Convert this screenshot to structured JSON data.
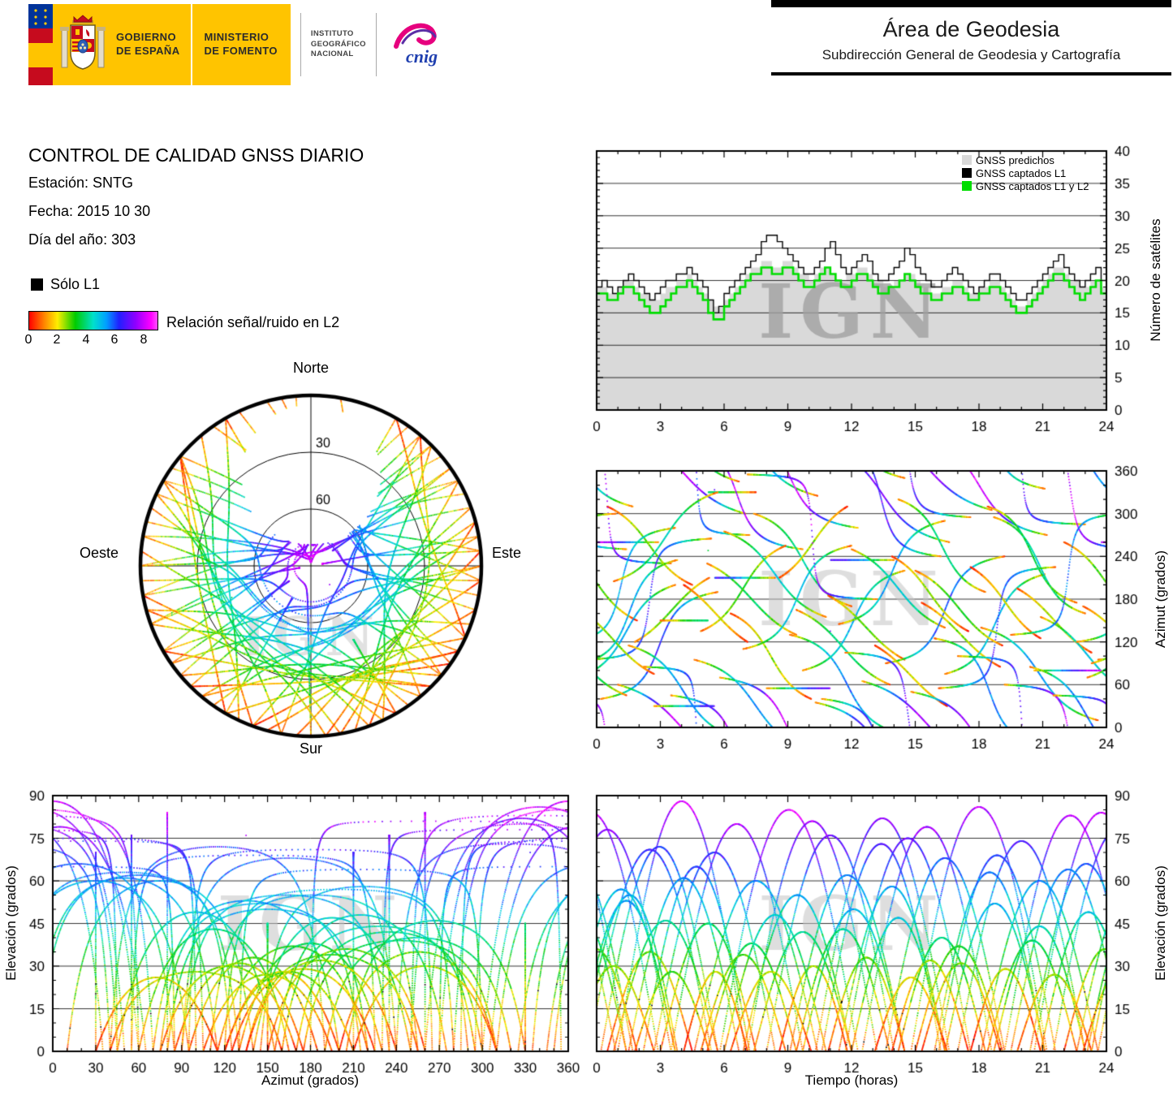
{
  "watermark": "IGN",
  "banner": {
    "gobierno": [
      "GOBIERNO",
      "DE ESPAÑA"
    ],
    "ministerio": [
      "MINISTERIO",
      "DE FOMENTO"
    ],
    "instituto": [
      "INSTITUTO",
      "GEOGRÁFICO",
      "NACIONAL"
    ],
    "cnig": "cnig"
  },
  "area": {
    "title": "Área de Geodesia",
    "subtitle": "Subdirección General de Geodesia y Cartografía"
  },
  "info": {
    "title": "CONTROL DE CALIDAD GNSS DIARIO",
    "station": "Estación: SNTG",
    "date": "Fecha: 2015 10 30",
    "doy": "Día del año: 303"
  },
  "legend": {
    "solo_l1": "Sólo L1",
    "snr_label": "Relación señal/ruido en L2",
    "snr_ticks": [
      0,
      2,
      4,
      6,
      8
    ]
  },
  "skyplot": {
    "north": "Norte",
    "south": "Sur",
    "east": "Este",
    "west": "Oeste"
  },
  "chart_data": [
    {
      "id": "satellite_count",
      "type": "line",
      "title": "",
      "xlabel": "",
      "ylabel": "Número de satélites",
      "xlim": [
        0,
        24
      ],
      "ylim": [
        0,
        40
      ],
      "xticks": [
        0,
        3,
        6,
        9,
        12,
        15,
        18,
        21,
        24
      ],
      "yticks": [
        0,
        5,
        10,
        15,
        20,
        25,
        30,
        35,
        40
      ],
      "grid": [
        5,
        10,
        15,
        20,
        25,
        30,
        35
      ],
      "sample_interval_hours": 0.25,
      "legend": [
        {
          "label": "GNSS predichos",
          "color": "#d9d9d9"
        },
        {
          "label": "GNSS captados L1",
          "color": "#000000"
        },
        {
          "label": "GNSS captados L1 y L2",
          "color": "#00dd00"
        }
      ],
      "series": [
        {
          "name": "GNSS predichos",
          "values": [
            19,
            19,
            18,
            18,
            19,
            20,
            20,
            19,
            18,
            18,
            17,
            17,
            18,
            19,
            19,
            20,
            20,
            21,
            20,
            19,
            18,
            17,
            16,
            16,
            17,
            18,
            19,
            20,
            21,
            22,
            22,
            23,
            23,
            22,
            22,
            23,
            23,
            22,
            21,
            21,
            20,
            21,
            22,
            22,
            21,
            20,
            20,
            21,
            21,
            22,
            22,
            21,
            20,
            20,
            19,
            19,
            20,
            20,
            21,
            21,
            20,
            19,
            19,
            18,
            18,
            19,
            19,
            20,
            20,
            19,
            18,
            18,
            19,
            19,
            20,
            20,
            19,
            18,
            17,
            16,
            16,
            17,
            18,
            19,
            20,
            21,
            22,
            22,
            21,
            20,
            20,
            19,
            19,
            20,
            20,
            19
          ]
        },
        {
          "name": "GNSS captados L1",
          "values": [
            19,
            20,
            19,
            18,
            19,
            20,
            21,
            20,
            19,
            18,
            17,
            18,
            19,
            20,
            20,
            21,
            21,
            22,
            21,
            20,
            19,
            17,
            15,
            16,
            18,
            19,
            20,
            21,
            22,
            23,
            24,
            26,
            27,
            27,
            26,
            25,
            24,
            23,
            22,
            21,
            21,
            22,
            23,
            25,
            26,
            24,
            22,
            21,
            22,
            23,
            24,
            23,
            21,
            20,
            20,
            21,
            22,
            23,
            25,
            24,
            22,
            21,
            20,
            19,
            19,
            20,
            21,
            22,
            21,
            20,
            19,
            18,
            19,
            20,
            21,
            21,
            20,
            19,
            18,
            17,
            17,
            18,
            19,
            20,
            21,
            22,
            23,
            24,
            22,
            21,
            20,
            19,
            20,
            21,
            22,
            20
          ]
        },
        {
          "name": "GNSS captados L1 y L2",
          "values": [
            18,
            18,
            17,
            17,
            18,
            19,
            19,
            18,
            17,
            16,
            15,
            15,
            16,
            17,
            18,
            19,
            19,
            20,
            19,
            18,
            17,
            15,
            14,
            14,
            16,
            17,
            18,
            19,
            20,
            21,
            21,
            22,
            22,
            21,
            21,
            22,
            22,
            21,
            20,
            19,
            19,
            20,
            21,
            22,
            21,
            20,
            19,
            19,
            20,
            21,
            21,
            20,
            19,
            18,
            18,
            19,
            19,
            20,
            21,
            20,
            19,
            18,
            18,
            17,
            17,
            18,
            18,
            19,
            19,
            18,
            17,
            17,
            18,
            18,
            19,
            19,
            18,
            17,
            16,
            15,
            15,
            16,
            17,
            18,
            19,
            20,
            21,
            21,
            20,
            19,
            18,
            17,
            18,
            19,
            20,
            18
          ]
        }
      ]
    },
    {
      "id": "skyplot",
      "type": "scatter",
      "title": "",
      "rings": [
        {
          "el": 30,
          "label": "30"
        },
        {
          "el": 60,
          "label": "60"
        }
      ],
      "tracks_source": "satellite_tracks"
    },
    {
      "id": "azimuth_vs_time",
      "type": "scatter",
      "xlabel": "",
      "ylabel": "Azimut (grados)",
      "xlim": [
        0,
        24
      ],
      "ylim": [
        0,
        360
      ],
      "xticks": [
        0,
        3,
        6,
        9,
        12,
        15,
        18,
        21,
        24
      ],
      "yticks": [
        0,
        60,
        120,
        180,
        240,
        300,
        360
      ],
      "grid": [
        60,
        120,
        180,
        240,
        300
      ],
      "tracks_source": "satellite_tracks"
    },
    {
      "id": "elevation_vs_azimuth",
      "type": "scatter",
      "xlabel": "Azimut (grados)",
      "ylabel": "Elevación (grados)",
      "xlim": [
        0,
        360
      ],
      "ylim": [
        0,
        90
      ],
      "xticks": [
        0,
        30,
        60,
        90,
        120,
        150,
        180,
        210,
        240,
        270,
        300,
        330,
        360
      ],
      "yticks": [
        0,
        15,
        30,
        45,
        60,
        75,
        90
      ],
      "grid": [
        15,
        30,
        45,
        60,
        75
      ],
      "tracks_source": "satellite_tracks"
    },
    {
      "id": "elevation_vs_time",
      "type": "scatter",
      "xlabel": "Tiempo (horas)",
      "ylabel": "Elevación (grados)",
      "xlim": [
        0,
        24
      ],
      "ylim": [
        0,
        90
      ],
      "xticks": [
        0,
        3,
        6,
        9,
        12,
        15,
        18,
        21,
        24
      ],
      "yticks": [
        0,
        15,
        30,
        45,
        60,
        75,
        90
      ],
      "grid": [
        15,
        30,
        45,
        60,
        75
      ],
      "tracks_source": "satellite_tracks"
    }
  ],
  "satellite_tracks": [
    [
      0.2,
      5.5,
      40,
      190,
      72,
      0
    ],
    [
      0.5,
      4.0,
      310,
      200,
      35,
      -0.5
    ],
    [
      1.0,
      6.0,
      60,
      300,
      88,
      0.3
    ],
    [
      1.8,
      3.5,
      120,
      210,
      28,
      0
    ],
    [
      2.2,
      5.0,
      85,
      270,
      65,
      0.2
    ],
    [
      3.0,
      4.5,
      150,
      330,
      45,
      -0.2
    ],
    [
      3.5,
      6.2,
      45,
      250,
      80,
      0.4
    ],
    [
      4.1,
      3.0,
      200,
      120,
      28,
      -0.6
    ],
    [
      4.6,
      5.8,
      95,
      325,
      60,
      0
    ],
    [
      5.2,
      4.2,
      230,
      130,
      38,
      0
    ],
    [
      5.8,
      6.5,
      70,
      280,
      85,
      0.5
    ],
    [
      6.3,
      3.8,
      160,
      40,
      28,
      -0.4
    ],
    [
      6.9,
      5.1,
      110,
      255,
      55,
      0
    ],
    [
      7.4,
      4.6,
      300,
      170,
      42,
      0.1
    ],
    [
      8.0,
      6.0,
      55,
      235,
      76,
      0.2
    ],
    [
      8.6,
      3.2,
      210,
      310,
      30,
      -0.5
    ],
    [
      9.1,
      5.4,
      130,
      350,
      62,
      0
    ],
    [
      9.7,
      4.8,
      80,
      220,
      50,
      0.3
    ],
    [
      10.3,
      6.3,
      35,
      260,
      82,
      0.1
    ],
    [
      10.9,
      3.6,
      185,
      95,
      33,
      -0.3
    ],
    [
      11.4,
      5.0,
      145,
      290,
      58,
      0
    ],
    [
      12.0,
      4.4,
      250,
      140,
      47,
      0.2
    ],
    [
      12.5,
      6.1,
      65,
      305,
      79,
      0.4
    ],
    [
      13.1,
      3.4,
      115,
      30,
      26,
      -0.5
    ],
    [
      13.6,
      5.6,
      90,
      240,
      68,
      0
    ],
    [
      14.2,
      4.1,
      320,
      190,
      40,
      0.1
    ],
    [
      14.8,
      6.4,
      50,
      270,
      86,
      0.3
    ],
    [
      15.3,
      3.7,
      175,
      85,
      31,
      -0.4
    ],
    [
      15.9,
      5.2,
      125,
      335,
      63,
      0
    ],
    [
      16.4,
      4.7,
      75,
      215,
      52,
      0.2
    ],
    [
      17.0,
      6.0,
      100,
      285,
      74,
      0.1
    ],
    [
      17.6,
      3.3,
      225,
      125,
      29,
      -0.6
    ],
    [
      18.1,
      5.5,
      140,
      10,
      60,
      0
    ],
    [
      18.7,
      4.3,
      295,
      160,
      44,
      0.2
    ],
    [
      19.2,
      6.2,
      60,
      250,
      83,
      0.4
    ],
    [
      19.8,
      3.5,
      195,
      105,
      27,
      -0.3
    ],
    [
      20.4,
      5.3,
      85,
      310,
      66,
      0
    ],
    [
      20.9,
      4.5,
      155,
      45,
      49,
      0.1
    ],
    [
      21.5,
      6.0,
      45,
      230,
      78,
      0.3
    ],
    [
      22.0,
      3.9,
      260,
      150,
      36,
      -0.4
    ],
    [
      22.6,
      5.1,
      120,
      280,
      57,
      0
    ],
    [
      23.1,
      4.6,
      70,
      200,
      53,
      0.2
    ],
    [
      23.6,
      5.8,
      95,
      265,
      71,
      0.1
    ],
    [
      0.8,
      4.9,
      205,
      330,
      46,
      0
    ],
    [
      2.7,
      5.7,
      30,
      210,
      70,
      0.2
    ],
    [
      4.9,
      4.0,
      135,
      255,
      34,
      -0.2
    ],
    [
      7.1,
      6.1,
      355,
      180,
      81,
      0.3
    ],
    [
      9.4,
      4.4,
      165,
      60,
      43,
      0
    ],
    [
      11.7,
      5.9,
      105,
      295,
      75,
      0.2
    ],
    [
      13.9,
      3.6,
      240,
      135,
      32,
      -0.5
    ],
    [
      16.1,
      5.5,
      55,
      225,
      69,
      0.1
    ],
    [
      18.4,
      4.2,
      310,
      175,
      39,
      0
    ],
    [
      20.6,
      6.3,
      80,
      260,
      84,
      0.4
    ],
    [
      22.9,
      3.8,
      170,
      75,
      30,
      -0.3
    ],
    [
      1.5,
      5.2,
      115,
      345,
      61,
      0
    ],
    [
      6.0,
      4.8,
      275,
      155,
      48,
      0.1
    ],
    [
      10.6,
      5.6,
      40,
      240,
      73,
      0.2
    ],
    [
      15.0,
      4.1,
      220,
      115,
      37,
      -0.2
    ],
    [
      19.5,
      5.4,
      130,
      300,
      64,
      0
    ],
    [
      23.3,
      4.5,
      90,
      235,
      55,
      0.1
    ]
  ]
}
